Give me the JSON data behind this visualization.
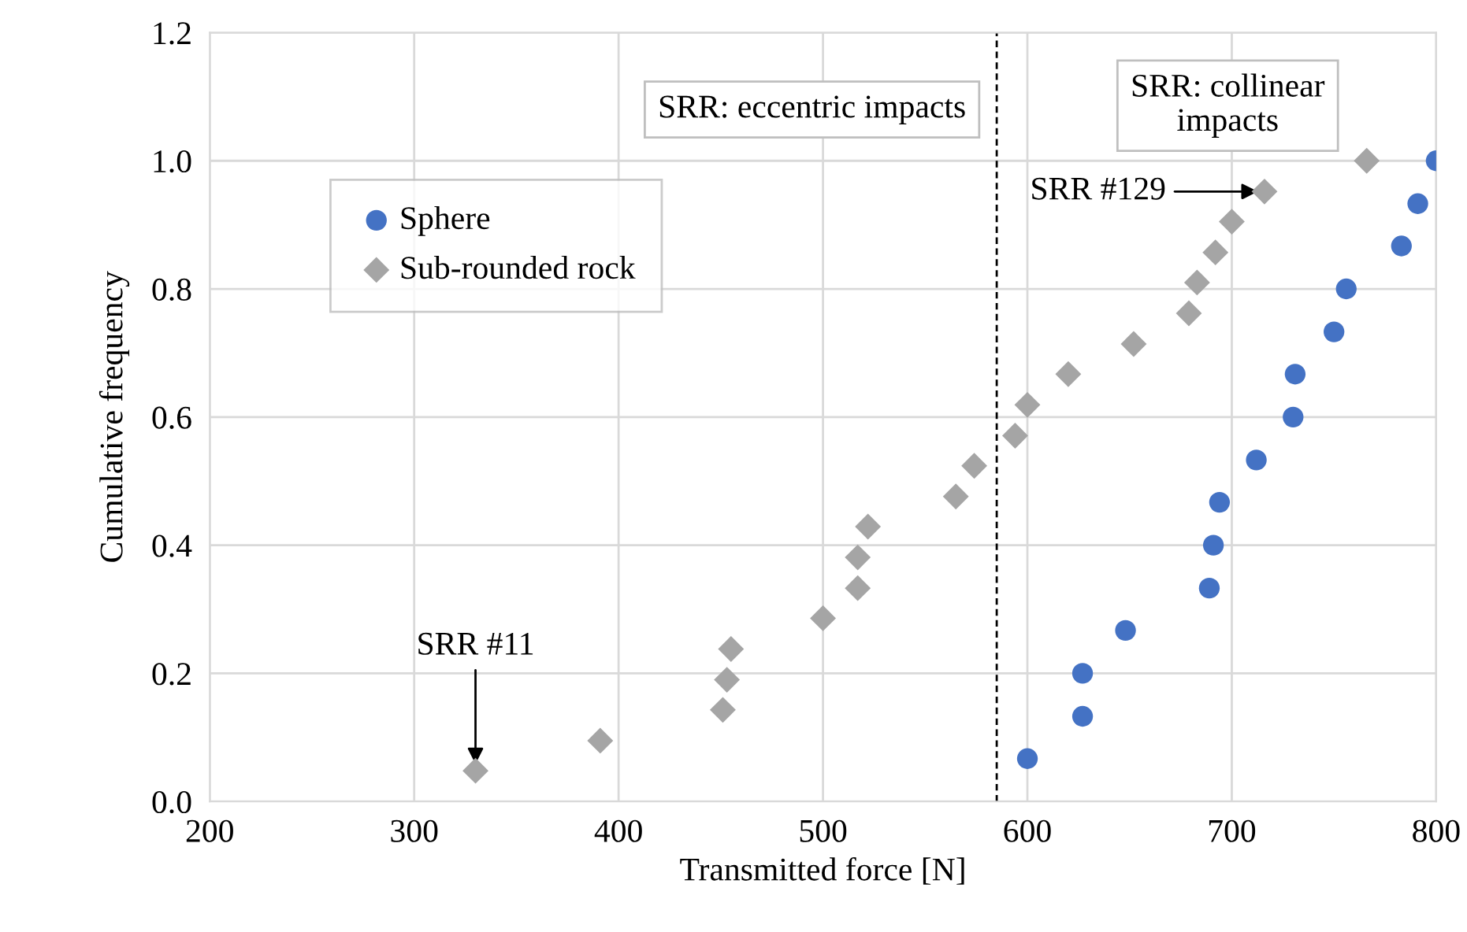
{
  "chart_data": {
    "type": "scatter",
    "xlabel": "Transmitted force [N]",
    "ylabel": "Cumulative frequency",
    "xlim": [
      200,
      800
    ],
    "xticks": [
      200,
      300,
      400,
      500,
      600,
      700,
      800
    ],
    "ylim": [
      0,
      1.2
    ],
    "yticks": [
      {
        "value": 0,
        "label": "0.0"
      },
      0.2,
      0.4,
      0.6,
      0.8,
      {
        "value": 1.0,
        "label": "1.0"
      },
      1.2
    ],
    "grid": true,
    "legend": "top left",
    "series": [
      {
        "name": "Sphere",
        "color": "#4472c4",
        "marker": "circle",
        "x": [
          600,
          627,
          627,
          648,
          689,
          691,
          694,
          712,
          730,
          731,
          750,
          756,
          783,
          791,
          800
        ],
        "values": [
          0.067,
          0.133,
          0.2,
          0.267,
          0.333,
          0.4,
          0.467,
          0.533,
          0.6,
          0.667,
          0.733,
          0.8,
          0.867,
          0.933,
          1.0
        ]
      },
      {
        "name": "Sub-rounded rock",
        "color": "#a5a5a5",
        "marker": "diamond",
        "x": [
          330,
          391,
          451,
          453,
          455,
          500,
          517,
          517,
          522,
          565,
          574,
          594,
          600,
          620,
          652,
          679,
          683,
          692,
          700,
          716,
          766
        ],
        "values": [
          0.048,
          0.095,
          0.143,
          0.19,
          0.238,
          0.286,
          0.333,
          0.381,
          0.429,
          0.476,
          0.524,
          0.571,
          0.619,
          0.667,
          0.714,
          0.762,
          0.81,
          0.857,
          0.905,
          0.952,
          1.0
        ]
      }
    ],
    "ref_lines": [
      {
        "axis": "x",
        "value": 585,
        "color": "#000000",
        "line_style": "dashed"
      }
    ],
    "annotations": [
      "SRR: eccentric impacts",
      "SRR: collinear\nimpacts",
      {
        "text": "SRR #11",
        "x": 330,
        "y": 0.048
      },
      {
        "text": "SRR #129",
        "x": 716,
        "y": 0.952
      }
    ]
  }
}
